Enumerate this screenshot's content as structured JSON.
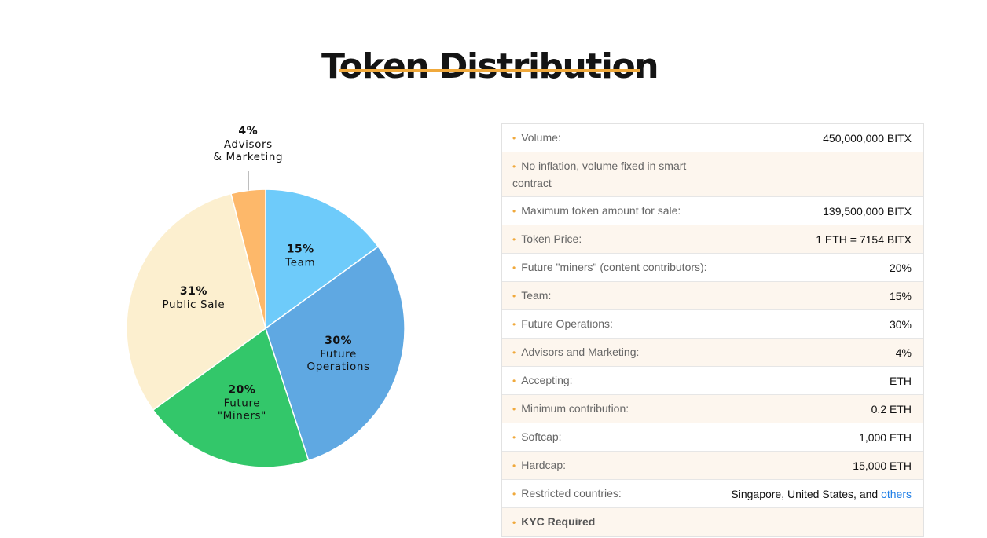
{
  "title": "Token Distribution",
  "colors": {
    "accent": "#f0a93c",
    "link": "#1e7ee6"
  },
  "chart_data": {
    "type": "pie",
    "start": "top",
    "direction": "clockwise",
    "slices": [
      {
        "key": "team",
        "value": 15,
        "pct_label": "15%",
        "label_lines": [
          "Team"
        ],
        "color": "#6ecbfa"
      },
      {
        "key": "future-operations",
        "value": 30,
        "pct_label": "30%",
        "label_lines": [
          "Future",
          "Operations"
        ],
        "color": "#5fa8e2"
      },
      {
        "key": "future-miners",
        "value": 20,
        "pct_label": "20%",
        "label_lines": [
          "Future",
          "\"Miners\""
        ],
        "color": "#33c76a"
      },
      {
        "key": "public-sale",
        "value": 31,
        "pct_label": "31%",
        "label_lines": [
          "Public Sale"
        ],
        "color": "#fcefcf"
      },
      {
        "key": "advisors-marketing",
        "value": 4,
        "pct_label": "4%",
        "label_lines": [
          "Advisors",
          "& Marketing"
        ],
        "color": "#fdb86a",
        "external": true
      }
    ]
  },
  "table": {
    "rows": [
      {
        "label": "Volume:",
        "value": "450,000,000 BITX"
      },
      {
        "label": "No inflation, volume fixed in smart contract",
        "value": ""
      },
      {
        "label": "Maximum token amount for sale:",
        "value": "139,500,000 BITX"
      },
      {
        "label": "Token Price:",
        "value": "1 ETH = 7154 BITX"
      },
      {
        "label": "Future \"miners\" (content contributors):",
        "value": "20%"
      },
      {
        "label": "Team:",
        "value": "15%"
      },
      {
        "label": "Future Operations:",
        "value": "30%"
      },
      {
        "label": "Advisors and Marketing:",
        "value": "4%"
      },
      {
        "label": "Accepting:",
        "value": "ETH"
      },
      {
        "label": "Minimum contribution:",
        "value": "0.2 ETH"
      },
      {
        "label": "Softcap:",
        "value": "1,000 ETH"
      },
      {
        "label": "Hardcap:",
        "value": "15,000 ETH"
      },
      {
        "label": "Restricted countries:",
        "value": "Singapore, United States, and ",
        "link": "others"
      },
      {
        "label": "KYC Required",
        "value": ""
      }
    ]
  }
}
